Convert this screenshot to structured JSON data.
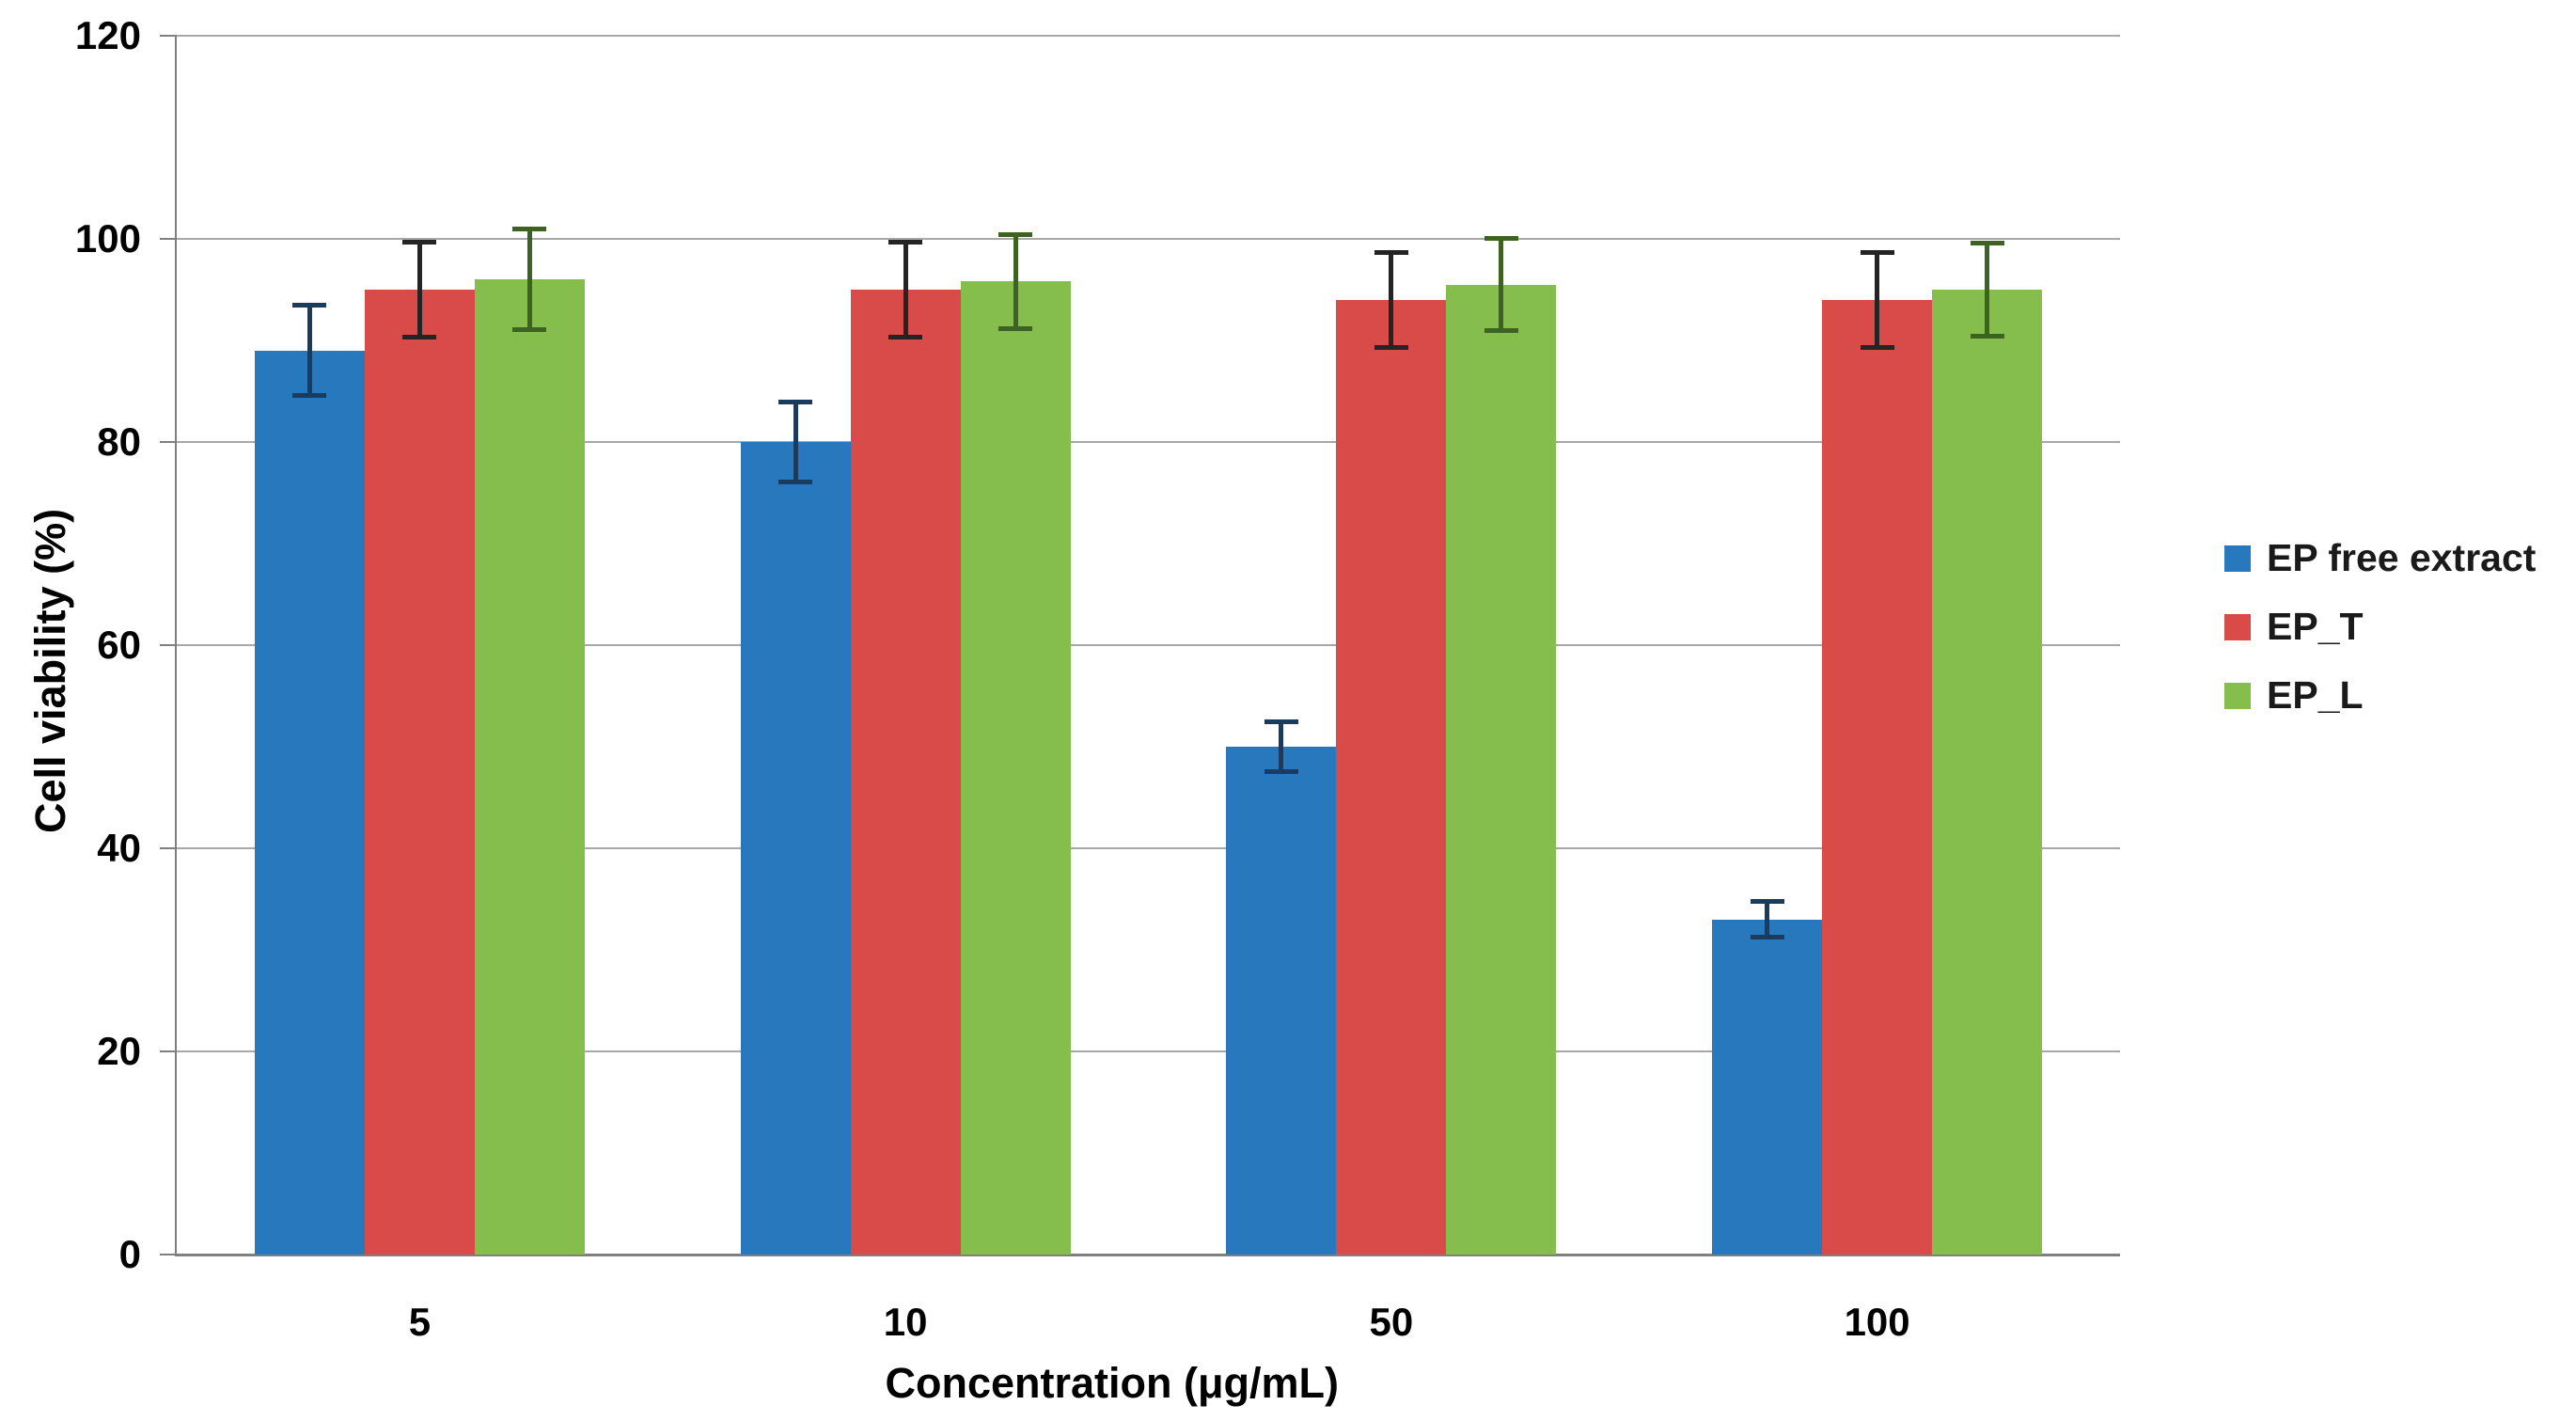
{
  "chart_data": {
    "type": "bar",
    "title": "",
    "xlabel": "Concentration (μg/mL)",
    "ylabel": "Cell viability (%)",
    "categories": [
      "5",
      "10",
      "50",
      "100"
    ],
    "series": [
      {
        "name": "EP free extract",
        "color": "#2878BE",
        "error_color": "#1b3a5c",
        "values": [
          89,
          80,
          50,
          33
        ],
        "errors": [
          4.5,
          4,
          2.5,
          1.8
        ]
      },
      {
        "name": "EP_T",
        "color": "#D84B48",
        "error_color": "#242424",
        "values": [
          95,
          95,
          94,
          94
        ],
        "errors": [
          4.7,
          4.7,
          4.7,
          4.7
        ]
      },
      {
        "name": "EP_L",
        "color": "#85BE4C",
        "error_color": "#3c6322",
        "values": [
          96,
          95.8,
          95.5,
          95
        ],
        "errors": [
          5,
          4.7,
          4.6,
          4.6
        ]
      }
    ],
    "ylim": [
      0,
      120
    ],
    "ytick_step": 20,
    "yticks": [
      0,
      20,
      40,
      60,
      80,
      100,
      120
    ],
    "grid": true,
    "legend_position": "right",
    "colors": {
      "gridline": "#a8a8a8",
      "axis": "#7f7f7f",
      "text": "#000000",
      "background": "#ffffff"
    }
  }
}
